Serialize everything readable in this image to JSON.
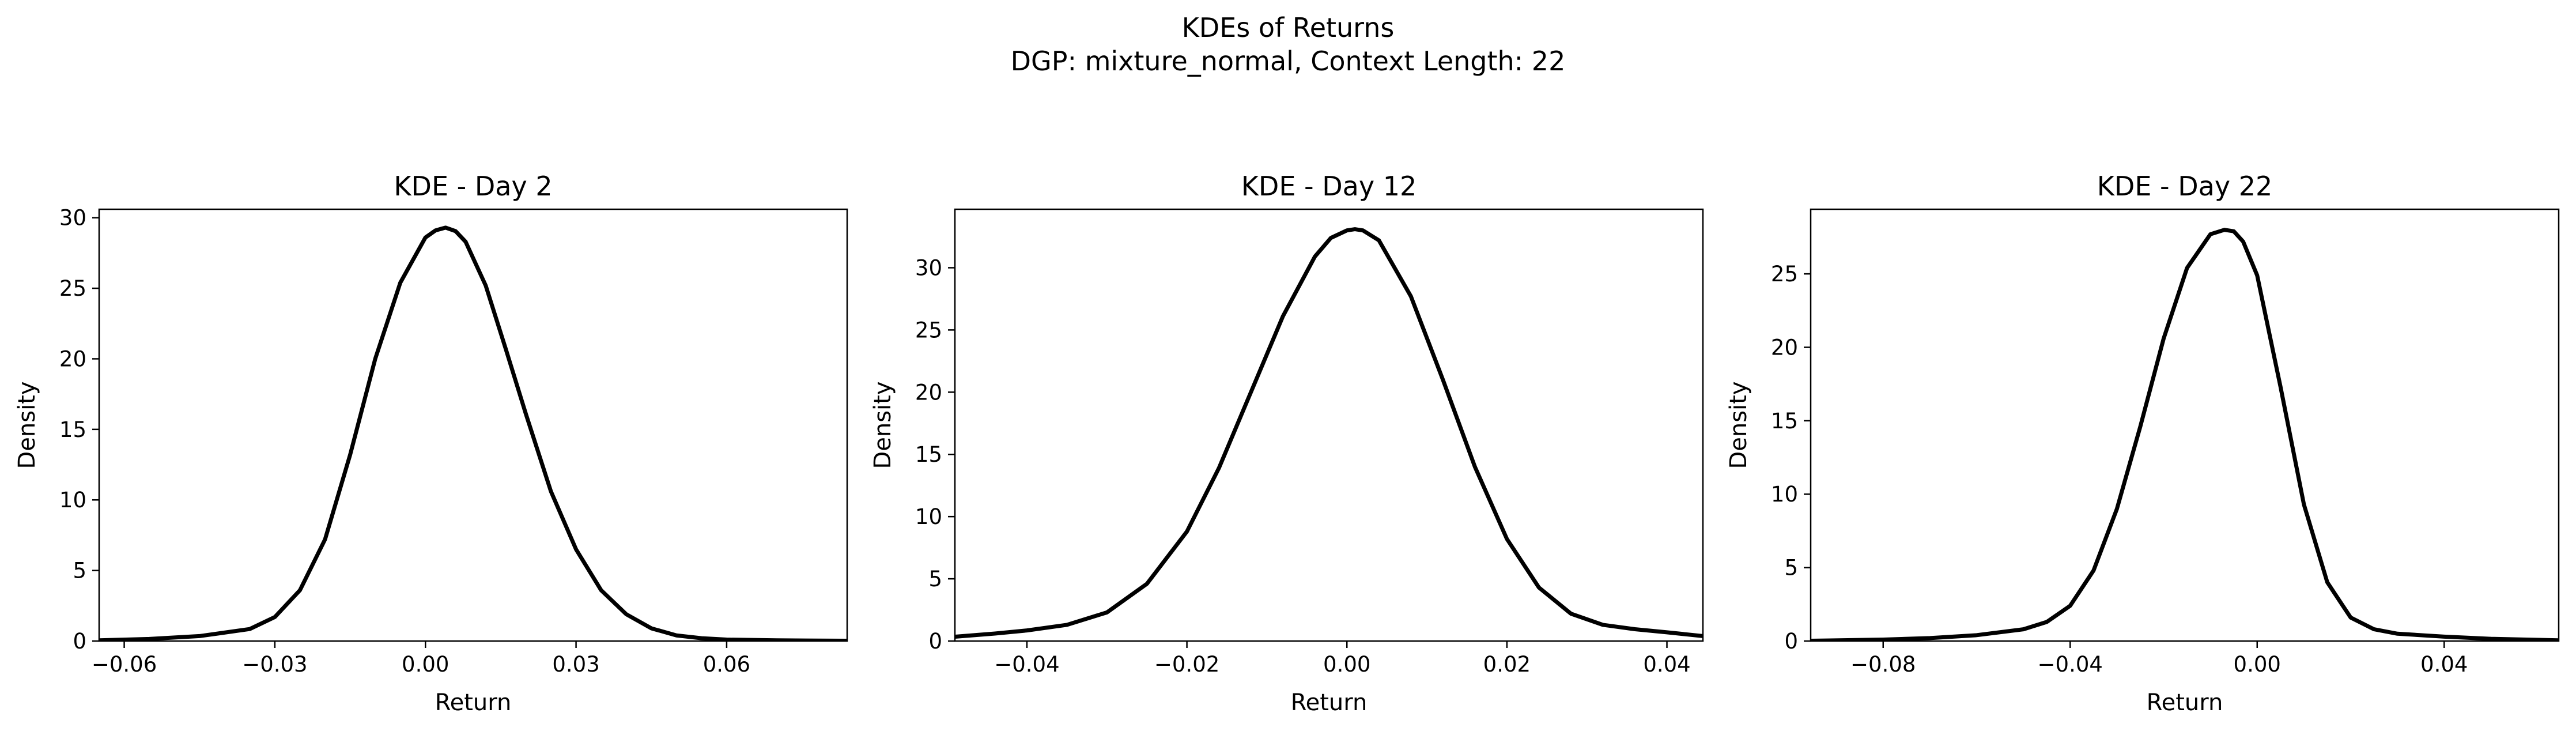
{
  "figure": {
    "title_line1": "KDEs of Returns",
    "title_line2": "DGP: mixture_normal, Context Length: 22",
    "line_color": "#000000"
  },
  "chart_data": [
    {
      "type": "line",
      "title": "KDE - Day 2",
      "xlabel": "Return",
      "ylabel": "Density",
      "xlim": [
        -0.065,
        0.084
      ],
      "ylim": [
        0,
        30.6
      ],
      "xticks": [
        -0.06,
        -0.03,
        0.0,
        0.03,
        0.06
      ],
      "xtick_labels": [
        "−0.06",
        "−0.03",
        "0.00",
        "0.03",
        "0.06"
      ],
      "yticks": [
        0,
        5,
        10,
        15,
        20,
        25,
        30
      ],
      "ytick_labels": [
        "0",
        "5",
        "10",
        "15",
        "20",
        "25",
        "30"
      ],
      "grid": false,
      "series": [
        {
          "x": [
            -0.065,
            -0.055,
            -0.045,
            -0.035,
            -0.03,
            -0.025,
            -0.02,
            -0.015,
            -0.01,
            -0.005,
            0.0,
            0.002,
            0.004,
            0.006,
            0.008,
            0.012,
            0.016,
            0.02,
            0.025,
            0.03,
            0.035,
            0.04,
            0.045,
            0.05,
            0.055,
            0.06,
            0.07,
            0.084
          ],
          "y": [
            0.05,
            0.15,
            0.35,
            0.85,
            1.7,
            3.6,
            7.2,
            13.2,
            20.0,
            25.4,
            28.6,
            29.1,
            29.3,
            29.05,
            28.3,
            25.2,
            20.7,
            16.1,
            10.6,
            6.5,
            3.6,
            1.9,
            0.9,
            0.4,
            0.2,
            0.1,
            0.05,
            0.02
          ]
        }
      ]
    },
    {
      "type": "line",
      "title": "KDE - Day 12",
      "xlabel": "Return",
      "ylabel": "Density",
      "xlim": [
        -0.049,
        0.0445
      ],
      "ylim": [
        0,
        34.7
      ],
      "xticks": [
        -0.04,
        -0.02,
        0.0,
        0.02,
        0.04
      ],
      "xtick_labels": [
        "−0.04",
        "−0.02",
        "0.00",
        "0.02",
        "0.04"
      ],
      "yticks": [
        0,
        5,
        10,
        15,
        20,
        25,
        30
      ],
      "ytick_labels": [
        "0",
        "5",
        "10",
        "15",
        "20",
        "25",
        "30"
      ],
      "grid": false,
      "series": [
        {
          "x": [
            -0.049,
            -0.044,
            -0.04,
            -0.035,
            -0.03,
            -0.025,
            -0.02,
            -0.016,
            -0.012,
            -0.008,
            -0.004,
            -0.002,
            0.0,
            0.001,
            0.002,
            0.004,
            0.008,
            0.012,
            0.016,
            0.02,
            0.024,
            0.028,
            0.032,
            0.036,
            0.04,
            0.0445
          ],
          "y": [
            0.35,
            0.6,
            0.85,
            1.3,
            2.3,
            4.6,
            8.8,
            13.9,
            20.0,
            26.1,
            30.9,
            32.4,
            33.0,
            33.1,
            33.0,
            32.2,
            27.7,
            21.0,
            14.0,
            8.2,
            4.3,
            2.2,
            1.3,
            0.95,
            0.7,
            0.4
          ]
        }
      ]
    },
    {
      "type": "line",
      "title": "KDE - Day 22",
      "xlabel": "Return",
      "ylabel": "Density",
      "xlim": [
        -0.0955,
        0.0645
      ],
      "ylim": [
        0,
        29.4
      ],
      "xticks": [
        -0.08,
        -0.04,
        0.0,
        0.04
      ],
      "xtick_labels": [
        "−0.08",
        "−0.04",
        "0.00",
        "0.04"
      ],
      "yticks": [
        0,
        5,
        10,
        15,
        20,
        25
      ],
      "ytick_labels": [
        "0",
        "5",
        "10",
        "15",
        "20",
        "25"
      ],
      "grid": false,
      "series": [
        {
          "x": [
            -0.0955,
            -0.08,
            -0.07,
            -0.06,
            -0.05,
            -0.045,
            -0.04,
            -0.035,
            -0.03,
            -0.025,
            -0.02,
            -0.015,
            -0.01,
            -0.007,
            -0.005,
            -0.003,
            0.0,
            0.005,
            0.01,
            0.015,
            0.02,
            0.025,
            0.03,
            0.04,
            0.05,
            0.0645
          ],
          "y": [
            0.02,
            0.1,
            0.2,
            0.4,
            0.8,
            1.3,
            2.4,
            4.8,
            9.0,
            14.6,
            20.6,
            25.4,
            27.7,
            28.0,
            27.9,
            27.2,
            24.9,
            17.3,
            9.3,
            4.0,
            1.6,
            0.8,
            0.5,
            0.3,
            0.15,
            0.05
          ]
        }
      ]
    }
  ]
}
